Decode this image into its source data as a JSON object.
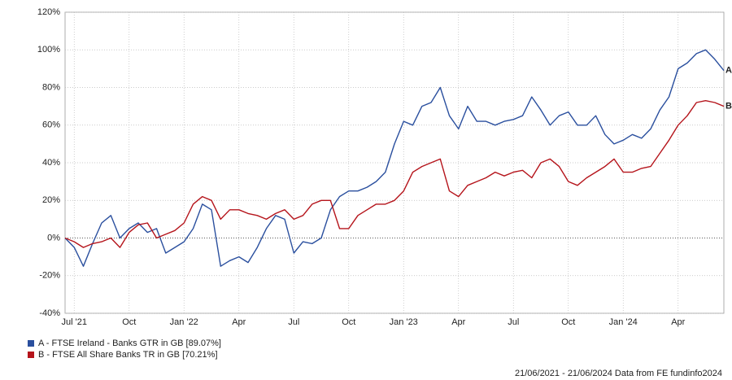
{
  "chart_data": {
    "type": "line",
    "categories": [
      null,
      "Jul '21",
      null,
      null,
      null,
      null,
      null,
      "Oct",
      null,
      null,
      null,
      null,
      null,
      "Jan '22",
      null,
      null,
      null,
      null,
      null,
      "Apr",
      null,
      null,
      null,
      null,
      null,
      "Jul",
      null,
      null,
      null,
      null,
      null,
      "Oct",
      null,
      null,
      null,
      null,
      null,
      "Jan '23",
      null,
      null,
      null,
      null,
      null,
      "Apr",
      null,
      null,
      null,
      null,
      null,
      "Jul",
      null,
      null,
      null,
      null,
      null,
      "Oct",
      null,
      null,
      null,
      null,
      null,
      "Jan '24",
      null,
      null,
      null,
      null,
      null,
      "Apr",
      null,
      null,
      null,
      null,
      null
    ],
    "series": [
      {
        "name": "A - FTSE Ireland - Banks GTR in GB [89.07%]",
        "end_label": "A",
        "color": "#2a4f9e",
        "values": [
          0,
          -5,
          -15,
          -3,
          8,
          12,
          0,
          5,
          8,
          3,
          5,
          -8,
          -5,
          -2,
          5,
          18,
          15,
          -15,
          -12,
          -10,
          -13,
          -5,
          5,
          12,
          10,
          -8,
          -2,
          -3,
          0,
          15,
          22,
          25,
          25,
          27,
          30,
          35,
          50,
          62,
          60,
          70,
          72,
          80,
          65,
          58,
          70,
          62,
          62,
          60,
          62,
          63,
          65,
          75,
          68,
          60,
          65,
          67,
          60,
          60,
          65,
          55,
          50,
          52,
          55,
          53,
          58,
          68,
          75,
          90,
          93,
          98,
          100,
          95,
          89
        ]
      },
      {
        "name": "B - FTSE All Share Banks TR in GB [70.21%]",
        "end_label": "B",
        "color": "#b5141b",
        "values": [
          0,
          -2,
          -5,
          -3,
          -2,
          0,
          -5,
          3,
          7,
          8,
          0,
          2,
          4,
          8,
          18,
          22,
          20,
          10,
          15,
          15,
          13,
          12,
          10,
          13,
          15,
          10,
          12,
          18,
          20,
          20,
          5,
          5,
          12,
          15,
          18,
          18,
          20,
          25,
          35,
          38,
          40,
          42,
          25,
          22,
          28,
          30,
          32,
          35,
          33,
          35,
          36,
          32,
          40,
          42,
          38,
          30,
          28,
          32,
          35,
          38,
          42,
          35,
          35,
          37,
          38,
          45,
          52,
          60,
          65,
          72,
          73,
          72,
          70
        ]
      }
    ],
    "ylim": [
      -40,
      120
    ],
    "yticks": [
      {
        "value": -40,
        "label": "-40%"
      },
      {
        "value": -20,
        "label": "-20%"
      },
      {
        "value": 0,
        "label": "0%"
      },
      {
        "value": 20,
        "label": "20%"
      },
      {
        "value": 40,
        "label": "40%"
      },
      {
        "value": 60,
        "label": "60%"
      },
      {
        "value": 80,
        "label": "80%"
      },
      {
        "value": 100,
        "label": "100%"
      },
      {
        "value": 120,
        "label": "120%"
      }
    ],
    "grid": true,
    "footer": "21/06/2021 - 21/06/2024 Data from FE fundinfo2024"
  }
}
